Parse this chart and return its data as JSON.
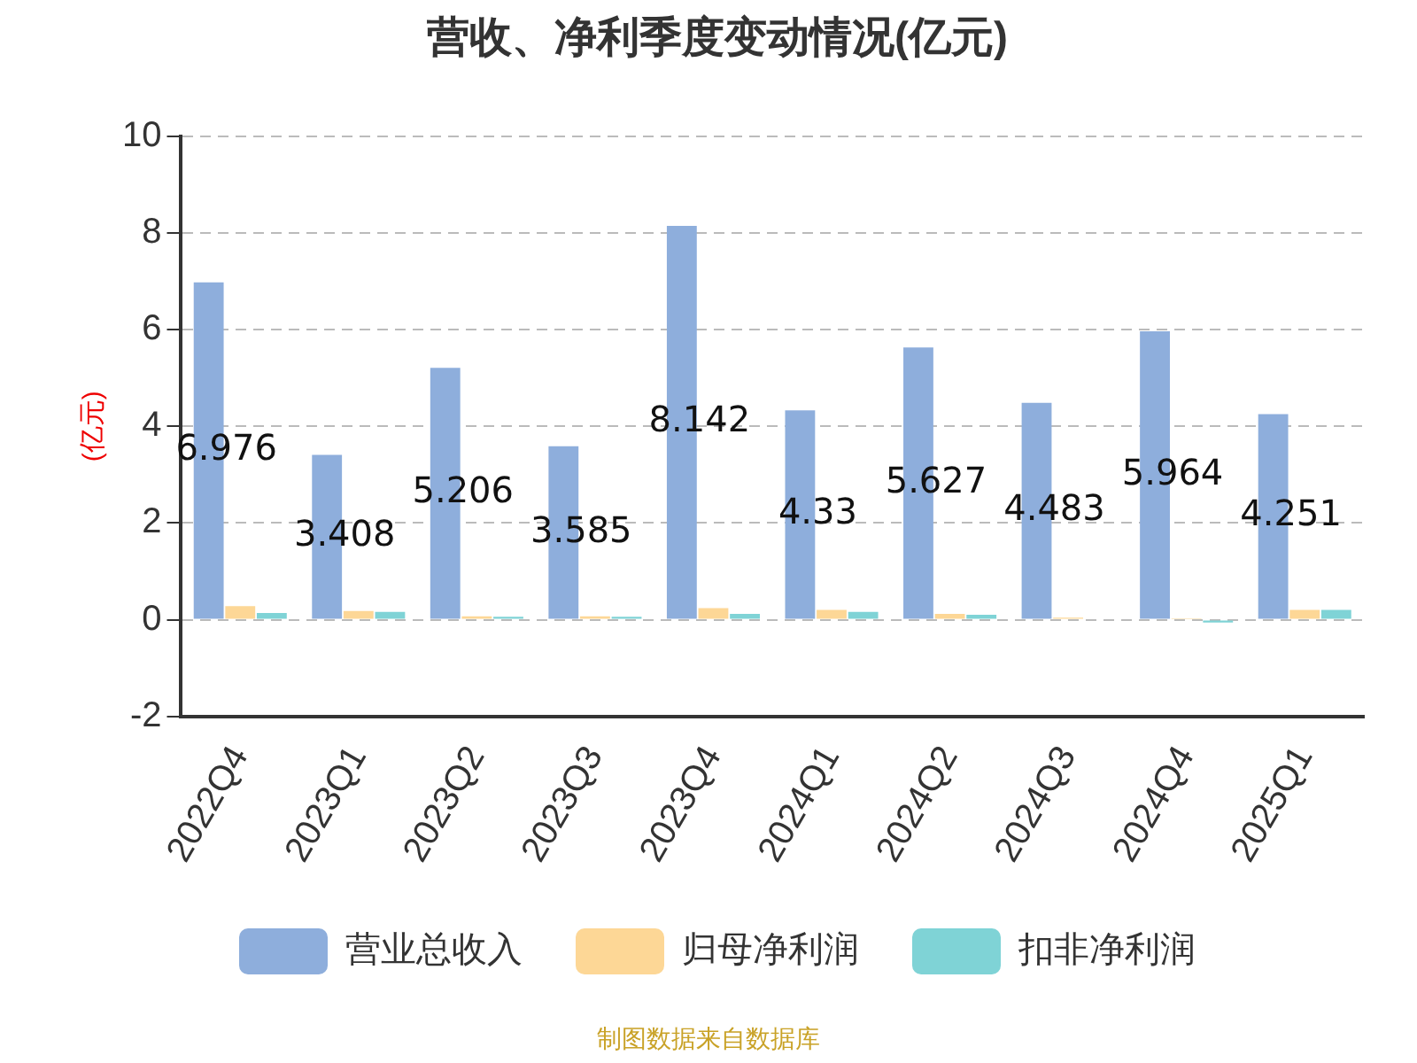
{
  "chart_data": {
    "type": "bar",
    "title": "营收、净利季度变动情况(亿元)",
    "ylabel": "(亿元)",
    "categories": [
      "2022Q4",
      "2023Q1",
      "2023Q2",
      "2023Q3",
      "2023Q4",
      "2024Q1",
      "2024Q2",
      "2024Q3",
      "2024Q4",
      "2025Q1"
    ],
    "series": [
      {
        "name": "营业总收入",
        "color": "#8eaedc",
        "values": [
          6.976,
          3.408,
          5.206,
          3.585,
          8.142,
          4.33,
          5.627,
          4.483,
          5.964,
          4.251
        ],
        "value_labels": [
          "6.976",
          "3.408",
          "5.206",
          "3.585",
          "8.142",
          "4.33",
          "5.627",
          "4.483",
          "5.964",
          "4.251"
        ]
      },
      {
        "name": "归母净利润",
        "color": "#fdd796",
        "values": [
          0.28,
          0.18,
          0.07,
          0.07,
          0.24,
          0.2,
          0.12,
          0.04,
          0.03,
          0.2
        ]
      },
      {
        "name": "扣非净利润",
        "color": "#7fd3d6",
        "values": [
          0.14,
          0.16,
          0.06,
          0.06,
          0.12,
          0.16,
          0.1,
          0.02,
          -0.06,
          0.2
        ]
      }
    ],
    "ylim": [
      -2,
      10
    ],
    "yticks": [
      -2,
      0,
      2,
      4,
      6,
      8,
      10
    ],
    "grid": "y",
    "legend": "bottom",
    "annotations": [
      "制图数据来自数据库"
    ]
  }
}
